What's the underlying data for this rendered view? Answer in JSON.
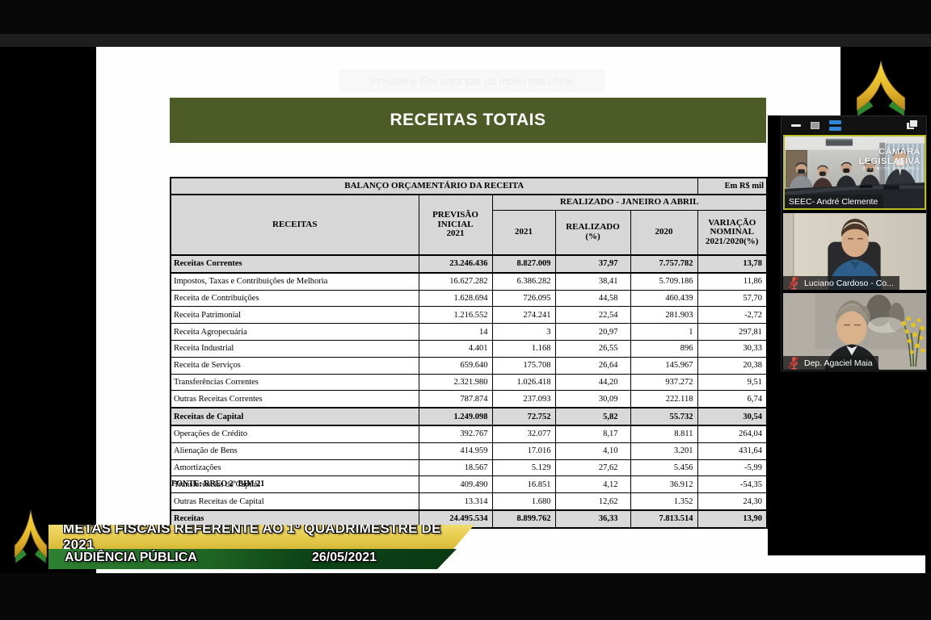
{
  "slide": {
    "fullscreen_notice": "Pressione  Esc  para sair do modo tela cheia",
    "title": "RECEITAS TOTAIS",
    "table": {
      "caption": "BALANÇO ORÇAMENTÁRIO DA RECEITA",
      "unit": "Em R$ mil",
      "headers": {
        "receitas": "RECEITAS",
        "previsao": "PREVISÃO\nINICIAL\n2021",
        "realizado_group": "REALIZADO - JANEIRO A ABRIL",
        "ano_2021": "2021",
        "realizado_pct": "REALIZADO\n(%)",
        "ano_2020": "2020",
        "variacao": "VARIAÇÃO\nNOMINAL\n2021/2020(%)"
      },
      "rows": [
        {
          "type": "section",
          "label": "Receitas Correntes",
          "values": [
            "23.246.436",
            "8.827.009",
            "37,97",
            "7.757.782",
            "13,78"
          ]
        },
        {
          "type": "item",
          "label": "Impostos, Taxas e Contribuições de Melhoria",
          "values": [
            "16.627.282",
            "6.386.282",
            "38,41",
            "5.709.186",
            "11,86"
          ]
        },
        {
          "type": "item",
          "label": "Receita de Contribuições",
          "values": [
            "1.628.694",
            "726.095",
            "44,58",
            "460.439",
            "57,70"
          ]
        },
        {
          "type": "item",
          "label": "Receita Patrimonial",
          "values": [
            "1.216.552",
            "274.241",
            "22,54",
            "281.903",
            "-2,72"
          ]
        },
        {
          "type": "item",
          "label": "Receita Agropecuária",
          "values": [
            "14",
            "3",
            "20,97",
            "1",
            "297,81"
          ]
        },
        {
          "type": "item",
          "label": "Receita Industrial",
          "values": [
            "4.401",
            "1.168",
            "26,55",
            "896",
            "30,33"
          ]
        },
        {
          "type": "item",
          "label": "Receita de Serviços",
          "values": [
            "659.640",
            "175.708",
            "26,64",
            "145.967",
            "20,38"
          ]
        },
        {
          "type": "item",
          "label": "Transferências Correntes",
          "values": [
            "2.321.980",
            "1.026.418",
            "44,20",
            "937.272",
            "9,51"
          ]
        },
        {
          "type": "item",
          "label": "Outras Receitas Correntes",
          "values": [
            "787.874",
            "237.093",
            "30,09",
            "222.118",
            "6,74"
          ]
        },
        {
          "type": "section",
          "label": "Receitas de Capital",
          "values": [
            "1.249.098",
            "72.752",
            "5,82",
            "55.732",
            "30,54"
          ]
        },
        {
          "type": "item",
          "label": "Operações de Crédito",
          "values": [
            "392.767",
            "32.077",
            "8,17",
            "8.811",
            "264,04"
          ]
        },
        {
          "type": "item",
          "label": "Alienação de Bens",
          "values": [
            "414.959",
            "17.016",
            "4,10",
            "3.201",
            "431,64"
          ]
        },
        {
          "type": "item",
          "label": "Amortizações",
          "values": [
            "18.567",
            "5.129",
            "27,62",
            "5.456",
            "-5,99"
          ]
        },
        {
          "type": "item",
          "label": "Transferências de Capital",
          "values": [
            "409.490",
            "16.851",
            "4,12",
            "36.912",
            "-54,35"
          ]
        },
        {
          "type": "item",
          "label": "Outras Receitas de Capital",
          "values": [
            "13.314",
            "1.680",
            "12,62",
            "1.352",
            "24,30"
          ]
        },
        {
          "type": "total",
          "label": "Receitas",
          "values": [
            "24.495.534",
            "8.899.762",
            "36,33",
            "7.813.514",
            "13,90"
          ]
        }
      ],
      "fonte": "FONTE: RREO 2º BIM/21"
    }
  },
  "video_panel": {
    "watermark_line1": "CÂMARA",
    "watermark_line2": "LEGISLATIVA",
    "watermark_line3": "DISTRITO FEDERAL",
    "participants": [
      {
        "name": "SEEC- André Clemente",
        "muted": false,
        "active": true
      },
      {
        "name": "Luciano Cardoso - Co...",
        "muted": true,
        "active": false
      },
      {
        "name": "Dep. Agaciel Maia",
        "muted": true,
        "active": false
      }
    ]
  },
  "banner": {
    "title": "METAS FISCAIS REFERENTE AO 1º QUADRIMESTRE DE 2021",
    "subtitle": "AUDIÊNCIA PÚBLICA",
    "date": "26/05/2021"
  },
  "colors": {
    "slide_title_bg": "#4d5c26",
    "banner_yellow": "#e5cb4b",
    "banner_green_dark": "#0a3a13",
    "active_speaker_border": "#b8bc20",
    "muted_mic_red": "#e2574c",
    "gallery_icon_blue": "#2f86d6"
  }
}
